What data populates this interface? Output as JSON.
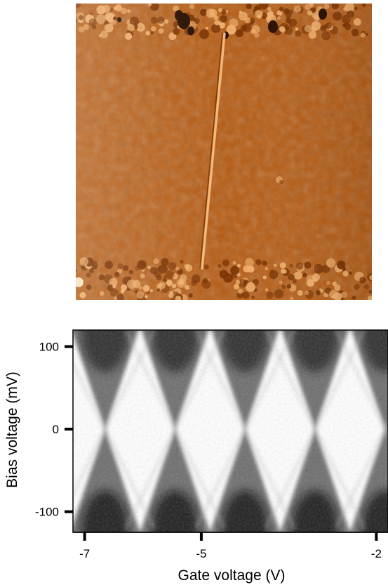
{
  "chart_data": [
    {
      "type": "image",
      "title": "",
      "colors": {
        "base": "#b65a10",
        "dark": "#2a1000",
        "light": "#f0b270"
      }
    },
    {
      "type": "heatmap",
      "title": "",
      "xlabel": "Gate voltage (V)",
      "ylabel": "Bias voltage (mV)",
      "xlim": [
        -7.2,
        -1.8
      ],
      "ylim": [
        -125,
        120
      ],
      "x_ticks": [
        -7,
        -5,
        -2
      ],
      "x_tick_labels": [
        "-7",
        "-5",
        "-2"
      ],
      "y_ticks": [
        100,
        0,
        -100
      ],
      "y_tick_labels": [
        "100",
        "0",
        "-100"
      ],
      "colormap": "grayscale",
      "degeneracy_points_gate_V": [
        -6.65,
        -5.45,
        -4.25,
        -3.05,
        -1.85
      ],
      "diamond_half_height_mV": 125,
      "colors": {
        "low": "#ffffff",
        "high": "#000000"
      }
    }
  ]
}
